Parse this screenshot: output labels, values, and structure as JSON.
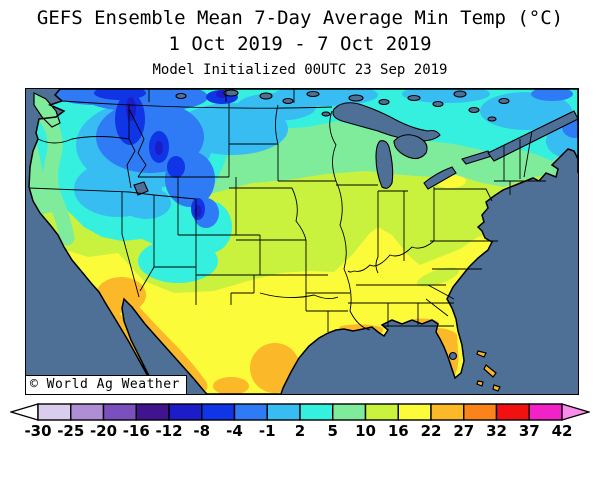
{
  "title": {
    "line1": "GEFS Ensemble Mean 7-Day Average Min Temp (°C)",
    "line2": "1 Oct 2019 - 7 Oct 2019",
    "line3": "Model Initialized 00UTC 23 Sep 2019"
  },
  "map": {
    "watermark": "© World Ag Weather",
    "ocean_color": "#4F7096",
    "frame_color": "#000000"
  },
  "chart_data": {
    "type": "heatmap",
    "title": "GEFS Ensemble Mean 7-Day Average Min Temp (°C)",
    "subtitle": "1 Oct 2019 - 7 Oct 2019",
    "initialization": "Model Initialized 00UTC 23 Sep 2019",
    "units": "°C",
    "geography": "Contiguous United States with southern Canada and northern Mexico, state and province borders drawn, oceans and Great Lakes in slate blue",
    "legend": {
      "position": "bottom",
      "tick_labels": [
        "-30",
        "-25",
        "-20",
        "-16",
        "-12",
        "-8",
        "-4",
        "-1",
        "2",
        "5",
        "10",
        "16",
        "22",
        "27",
        "32",
        "37",
        "42"
      ],
      "segment_colors": [
        "#D9CCEC",
        "#AE8FD6",
        "#7A4FBE",
        "#41148F",
        "#1C1CC8",
        "#0F35E6",
        "#2E7BF5",
        "#38BDF2",
        "#35F0DE",
        "#7FEC9C",
        "#C9F23F",
        "#FBFB3A",
        "#FBB829",
        "#FA831C",
        "#F21111",
        "#F222C8"
      ],
      "under_arrow_color": "#FFFFFF",
      "over_arrow_color": "#F98EEA"
    },
    "field_summary": [
      {
        "region": "Western Montana / NW Wyoming cold cores",
        "avg_min_temp_c": "-12 to -8"
      },
      {
        "region": "Northern Rockies (MT, WY, ID) broad area",
        "avg_min_temp_c": "-8 to -1"
      },
      {
        "region": "Colorado high country pocket",
        "avg_min_temp_c": "-12 to -4"
      },
      {
        "region": "Canadian Prairies (BC/AB/SK)",
        "avg_min_temp_c": "-8 to -1"
      },
      {
        "region": "Interior West / Great Basin / Dakotas",
        "avg_min_temp_c": "-1 to 5"
      },
      {
        "region": "Eastern Canada (Ontario/Quebec)",
        "avg_min_temp_c": "-1 to 5"
      },
      {
        "region": "Pacific Northwest coast",
        "avg_min_temp_c": "5 to 10"
      },
      {
        "region": "Upper Midwest (MN/WI/MI) and northern New England",
        "avg_min_temp_c": "5 to 10"
      },
      {
        "region": "Corn Belt (NE/IA/IL/IN/OH) and Mid-Atlantic",
        "avg_min_temp_c": "10 to 16"
      },
      {
        "region": "California and Southwest plateaus",
        "avg_min_temp_c": "2 to 16"
      },
      {
        "region": "Southern Plains and Southeast (KS/OK/TX to Carolinas)",
        "avg_min_temp_c": "16 to 22"
      },
      {
        "region": "Gulf Coast fringe, South Texas, Florida peninsula, SW Arizona",
        "avg_min_temp_c": "22 to 27"
      },
      {
        "region": "Mexico coastal lowlands and Baja California",
        "avg_min_temp_c": "22 to 27"
      }
    ]
  }
}
